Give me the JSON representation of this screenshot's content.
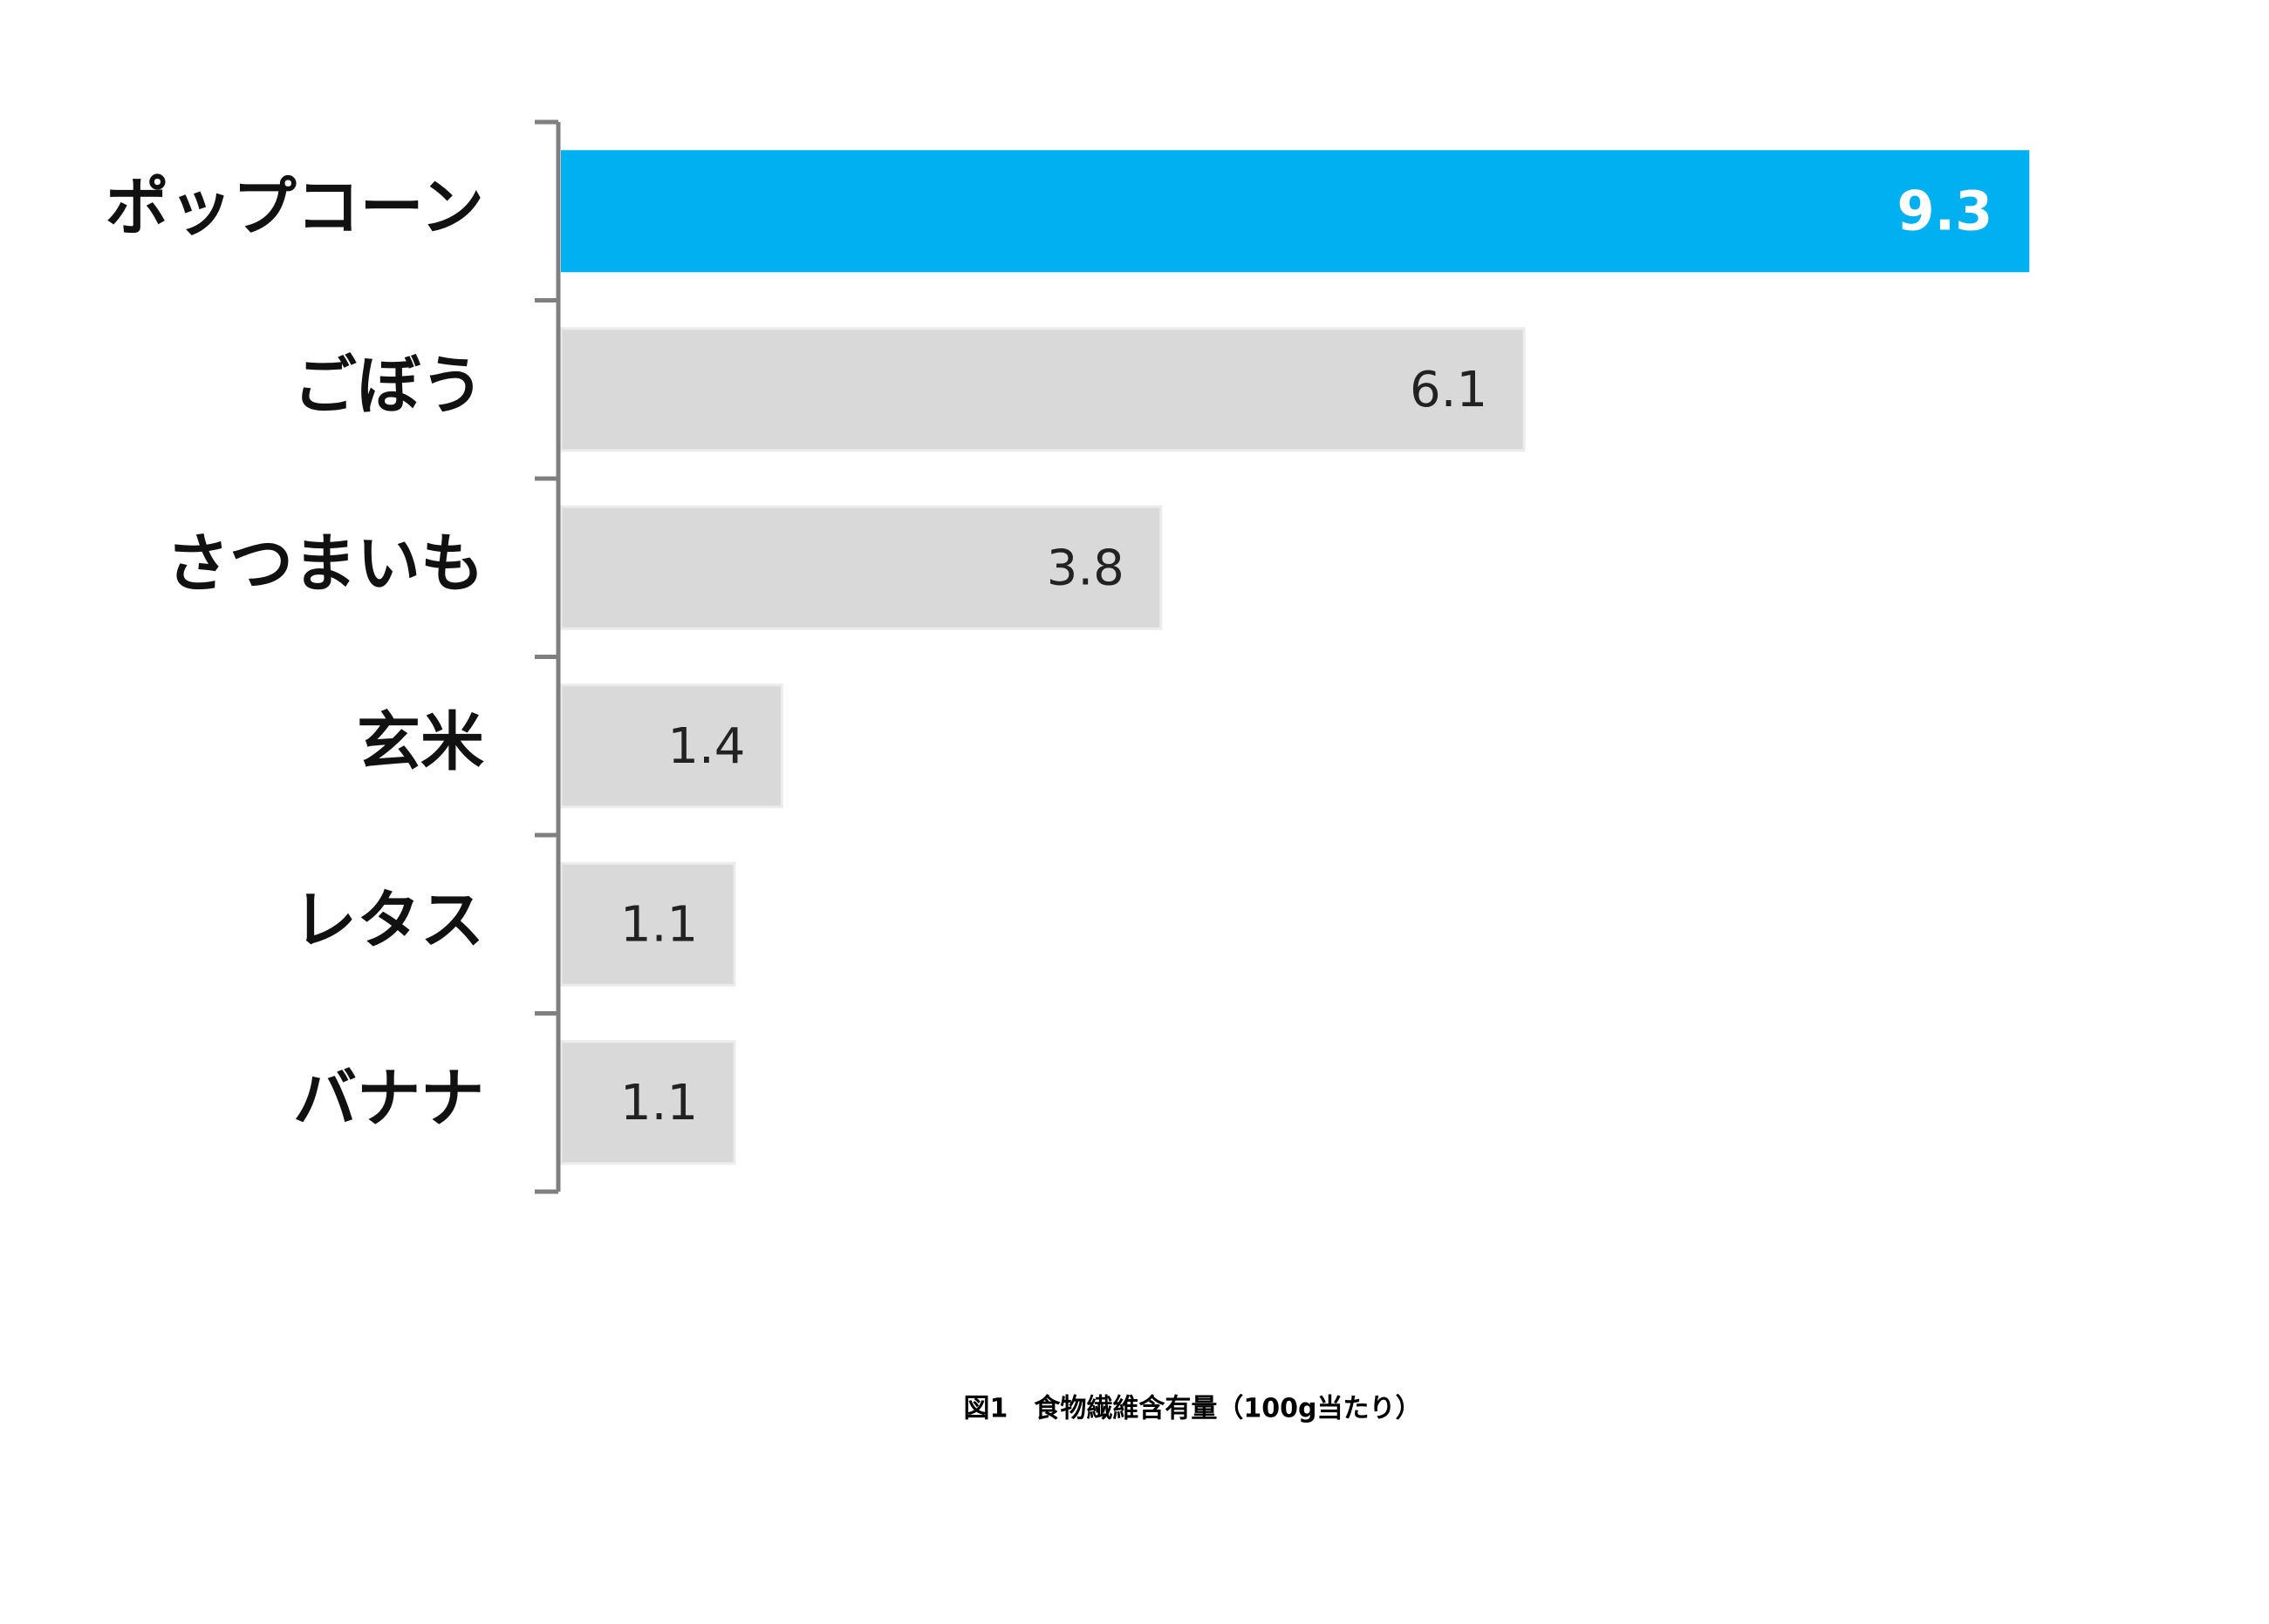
{
  "chart_data": {
    "type": "barh",
    "title": "図1　食物繊維含有量（100g当たり）",
    "categories": [
      "ポップコーン",
      "ごぼう",
      "さつまいも",
      "玄米",
      "レタス",
      "バナナ"
    ],
    "values": [
      9.3,
      6.1,
      3.8,
      1.4,
      1.1,
      1.1
    ],
    "colors": [
      "#00b0f0",
      "#d9d9d9",
      "#d9d9d9",
      "#d9d9d9",
      "#d9d9d9",
      "#d9d9d9"
    ],
    "xlim": [
      0,
      10
    ]
  }
}
